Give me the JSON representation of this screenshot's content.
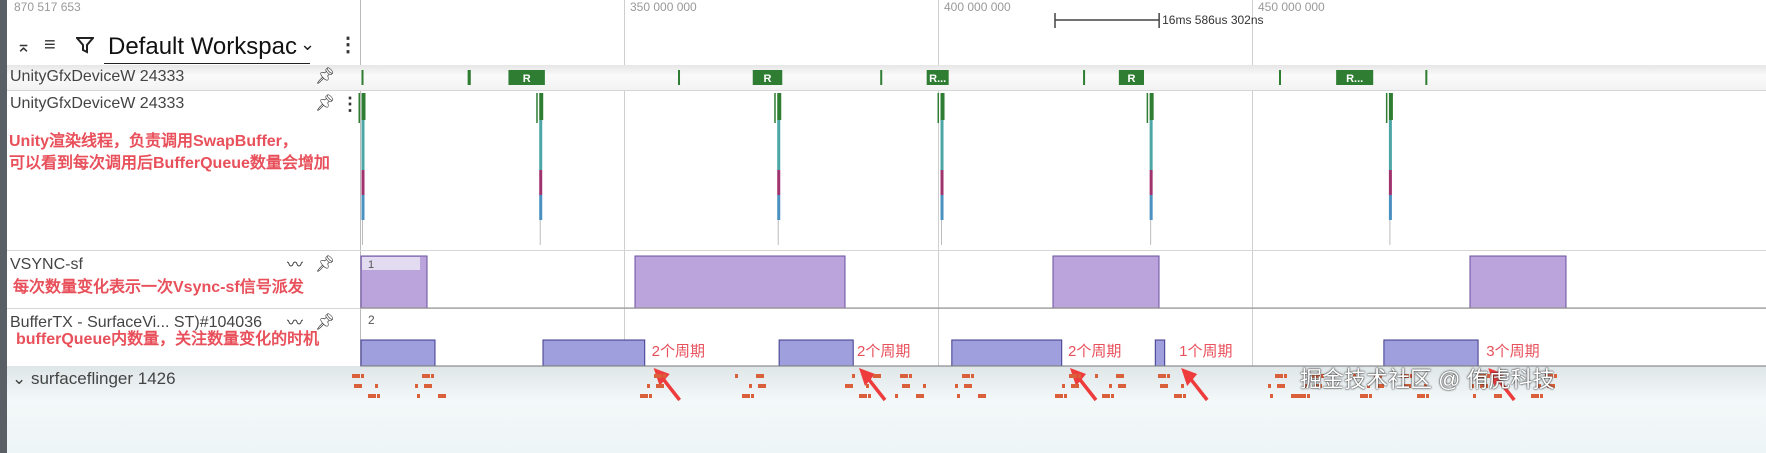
{
  "timeline": {
    "left_offset_label": "870 517 653",
    "ticks": [
      {
        "value": 350000000,
        "label": "350 000 000"
      },
      {
        "value": 400000000,
        "label": "400 000 000"
      },
      {
        "value": 450000000,
        "label": "450 000 000"
      }
    ],
    "view_start_ns": 308120000,
    "view_end_ns": 500000000,
    "measure": {
      "start_ns": 418630000,
      "end_ns": 435210000,
      "label": "16ms 586us 302ns"
    }
  },
  "toolbar": {
    "workspace": "Default Workspac",
    "icons": [
      "collapse-expand-icon",
      "sort-icon",
      "filter-icon",
      "chevron-down-icon",
      "more-vert-icon"
    ]
  },
  "tracks": {
    "pinned_thread": {
      "name": "UnityGfxDeviceW 24333",
      "slices": [
        {
          "start": 308200000,
          "end": 308400000,
          "label": ""
        },
        {
          "start": 325100000,
          "end": 325600000,
          "label": ""
        },
        {
          "start": 331600000,
          "end": 337400000,
          "label": "R"
        },
        {
          "start": 358600000,
          "end": 358900000,
          "label": ""
        },
        {
          "start": 370500000,
          "end": 375200000,
          "label": "R"
        },
        {
          "start": 390800000,
          "end": 391100000,
          "label": ""
        },
        {
          "start": 398200000,
          "end": 401700000,
          "label": "R..."
        },
        {
          "start": 423100000,
          "end": 423400000,
          "label": ""
        },
        {
          "start": 428800000,
          "end": 432800000,
          "label": "R"
        },
        {
          "start": 454300000,
          "end": 454600000,
          "label": ""
        },
        {
          "start": 463400000,
          "end": 469300000,
          "label": "R..."
        },
        {
          "start": 477600000,
          "end": 477900000,
          "label": ""
        }
      ]
    },
    "thread": {
      "name": "UnityGfxDeviceW 24333",
      "annotation_line1": "Unity渲染线程，负责调用SwapBuffer，",
      "annotation_line2": "可以看到每次调用后BufferQueue数量会增加",
      "stack_times": [
        308200000,
        336500000,
        374400000,
        400400000,
        433700000,
        471800000
      ],
      "colors": [
        "#2e7d32",
        "#4da6a6",
        "#a0336e",
        "#4a90c0"
      ]
    },
    "vsync": {
      "name": "VSYNC-sf",
      "annotation": "每次数量变化表示一次Vsync-sf信号派发",
      "hover_label": "1",
      "color": "#bba3dc",
      "segments": [
        {
          "start": 308120000,
          "end": 318630000,
          "value": 1
        },
        {
          "start": 351750000,
          "end": 385190000,
          "value": 1
        },
        {
          "start": 418310000,
          "end": 435190000,
          "value": 1
        },
        {
          "start": 484710000,
          "end": 500000000,
          "value": 1
        }
      ]
    },
    "buffertx": {
      "name": "BufferTX - SurfaceVi... ST)#104036",
      "annotation": "bufferQueue内数量，关注数量变化的时机",
      "max_label": "2",
      "color": "#a09fdd",
      "segments": [
        {
          "start": 308120000,
          "end": 319900000,
          "value": 1
        },
        {
          "start": 337100000,
          "end": 353300000,
          "value": 1
        },
        {
          "start": 374700000,
          "end": 386500000,
          "value": 1
        },
        {
          "start": 402200000,
          "end": 419700000,
          "value": 1
        },
        {
          "start": 434600000,
          "end": 436100000,
          "value": 1
        },
        {
          "start": 471000000,
          "end": 486000000,
          "value": 1
        }
      ],
      "period_notes": [
        {
          "at": 354400000,
          "label": "2个周期"
        },
        {
          "at": 387100000,
          "label": "2个周期"
        },
        {
          "at": 420700000,
          "label": "2个周期"
        },
        {
          "at": 438400000,
          "label": "1个周期"
        },
        {
          "at": 487300000,
          "label": "3个周期"
        }
      ]
    },
    "surfaceflinger": {
      "name": "surfaceflinger 1426"
    }
  },
  "watermark": "掘金技术社区 @ 侑虎科技"
}
